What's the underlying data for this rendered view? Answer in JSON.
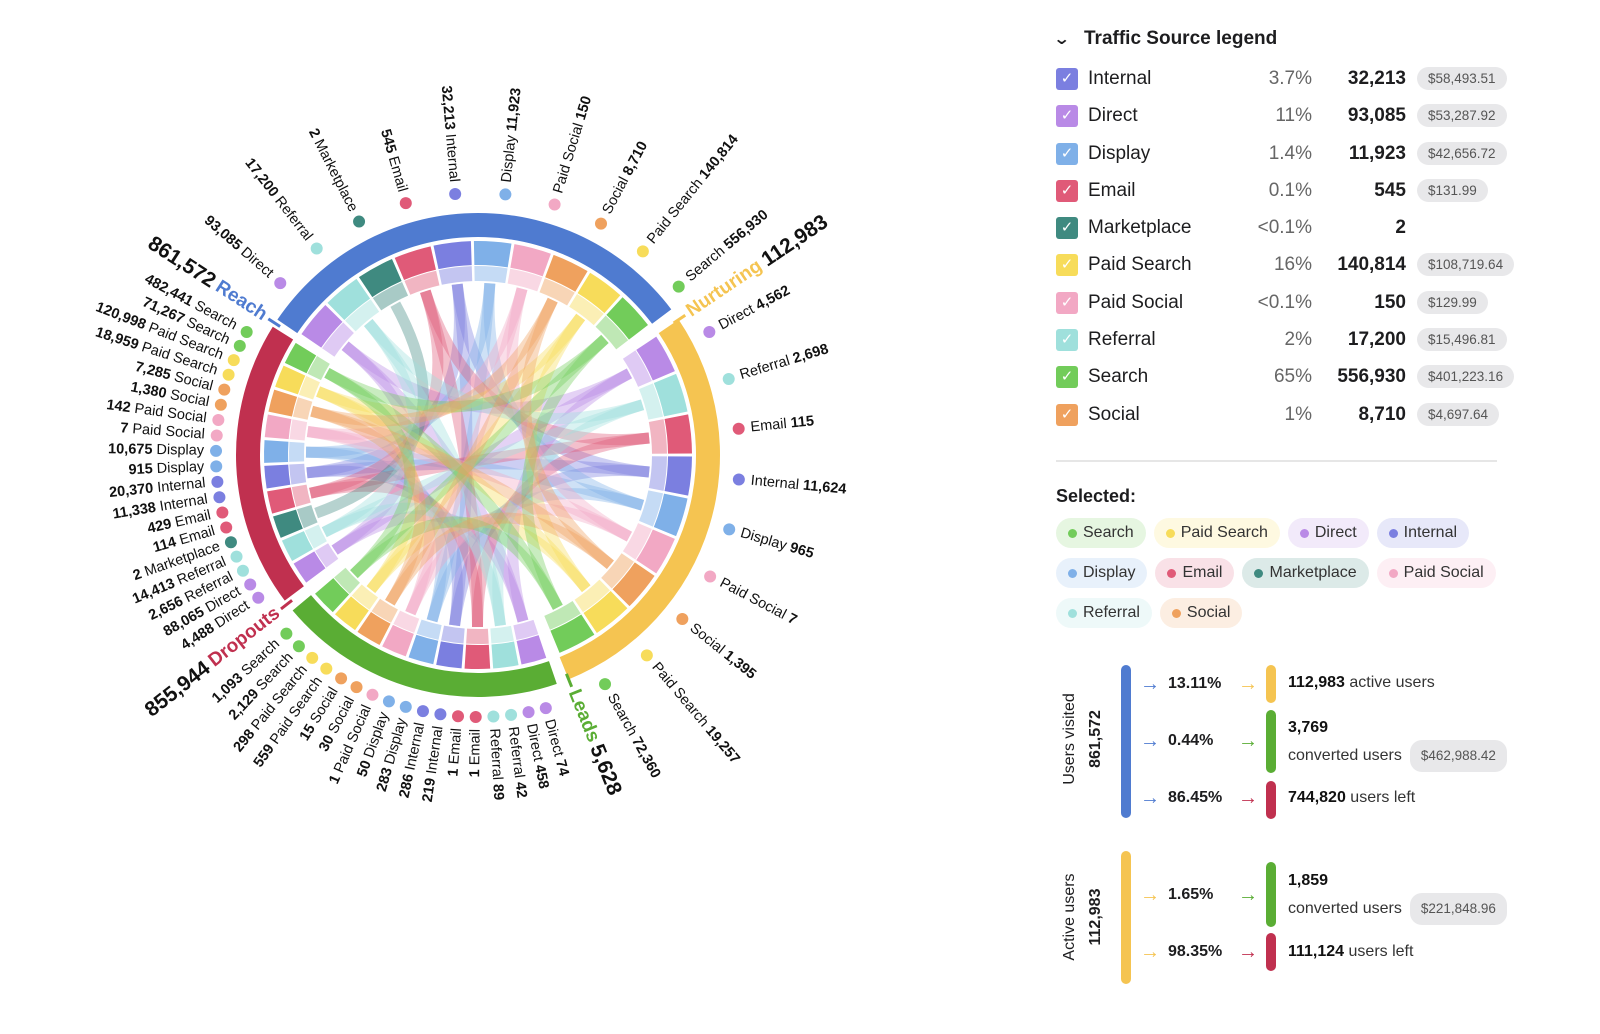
{
  "legend": {
    "title": "Traffic Source legend",
    "items": [
      {
        "name": "Internal",
        "pct": "3.7%",
        "count": "32,213",
        "revenue": "$58,493.51",
        "color": "#7b7fe0"
      },
      {
        "name": "Direct",
        "pct": "11%",
        "count": "93,085",
        "revenue": "$53,287.92",
        "color": "#b98ae6"
      },
      {
        "name": "Display",
        "pct": "1.4%",
        "count": "11,923",
        "revenue": "$42,656.72",
        "color": "#7fb0e8"
      },
      {
        "name": "Email",
        "pct": "0.1%",
        "count": "545",
        "revenue": "$131.99",
        "color": "#e05a78"
      },
      {
        "name": "Marketplace",
        "pct": "<0.1%",
        "count": "2",
        "color": "#3f8a80"
      },
      {
        "name": "Paid Search",
        "pct": "16%",
        "count": "140,814",
        "revenue": "$108,719.64",
        "color": "#f7dc5a"
      },
      {
        "name": "Paid Social",
        "pct": "<0.1%",
        "count": "150",
        "revenue": "$129.99",
        "color": "#f2a8c4"
      },
      {
        "name": "Referral",
        "pct": "2%",
        "count": "17,200",
        "revenue": "$15,496.81",
        "color": "#9fe0dc"
      },
      {
        "name": "Search",
        "pct": "65%",
        "count": "556,930",
        "revenue": "$401,223.16",
        "color": "#72cc5a"
      },
      {
        "name": "Social",
        "pct": "1%",
        "count": "8,710",
        "revenue": "$4,697.64",
        "color": "#efa15e"
      }
    ]
  },
  "selected": {
    "title": "Selected:",
    "chips": [
      "Search",
      "Paid Search",
      "Direct",
      "Internal",
      "Display",
      "Email",
      "Marketplace",
      "Paid Social",
      "Referral",
      "Social"
    ]
  },
  "flows": [
    {
      "label": "Users visited",
      "total": "861,572",
      "color": "#4f7bd0",
      "rows": [
        {
          "pct": "13.11%",
          "value": "112,983",
          "text": "active users",
          "color": "#f5c451"
        },
        {
          "pct": "0.44%",
          "value": "3,769",
          "text": "converted users",
          "revenue": "$462,988.42",
          "color": "#5aad34"
        },
        {
          "pct": "86.45%",
          "value": "744,820",
          "text": "users left",
          "color": "#c0304f"
        }
      ]
    },
    {
      "label": "Active users",
      "total": "112,983",
      "color": "#f5c451",
      "rows": [
        {
          "pct": "1.65%",
          "value": "1,859",
          "text": "converted users",
          "revenue": "$221,848.96",
          "color": "#5aad34"
        },
        {
          "pct": "98.35%",
          "value": "111,124",
          "text": "users left",
          "color": "#c0304f"
        }
      ]
    }
  ],
  "chart_data": {
    "type": "chord",
    "stages": [
      {
        "name": "Reach",
        "total": "861,572",
        "color": "#4f7bd0",
        "labels": [
          {
            "source": "Direct",
            "value": "93,085"
          },
          {
            "source": "Referral",
            "value": "17,200"
          },
          {
            "source": "Marketplace",
            "value": "2"
          },
          {
            "source": "Email",
            "value": "545"
          },
          {
            "source": "Internal",
            "value": "32,213"
          },
          {
            "source": "Display",
            "value": "11,923"
          },
          {
            "source": "Paid Social",
            "value": "150"
          },
          {
            "source": "Social",
            "value": "8,710"
          },
          {
            "source": "Paid Search",
            "value": "140,814"
          },
          {
            "source": "Search",
            "value": "556,930"
          }
        ]
      },
      {
        "name": "Nurturing",
        "total": "112,983",
        "color": "#f5c451",
        "labels": [
          {
            "source": "Direct",
            "value": "4,562"
          },
          {
            "source": "Referral",
            "value": "2,698"
          },
          {
            "source": "Email",
            "value": "115"
          },
          {
            "source": "Internal",
            "value": "11,624"
          },
          {
            "source": "Display",
            "value": "965"
          },
          {
            "source": "Paid Social",
            "value": "7"
          },
          {
            "source": "Social",
            "value": "1,395"
          },
          {
            "source": "Paid Search",
            "value": "19,257"
          },
          {
            "source": "Search",
            "value": "72,360"
          }
        ]
      },
      {
        "name": "Leads",
        "total": "5,628",
        "color": "#5aad34",
        "labels": [
          {
            "source": "Direct",
            "value": "74"
          },
          {
            "source": "Direct",
            "value": "458"
          },
          {
            "source": "Referral",
            "value": "42"
          },
          {
            "source": "Referral",
            "value": "89"
          },
          {
            "source": "Email",
            "value": "1"
          },
          {
            "source": "Email",
            "value": "1"
          },
          {
            "source": "Internal",
            "value": "219"
          },
          {
            "source": "Internal",
            "value": "286"
          },
          {
            "source": "Display",
            "value": "283"
          },
          {
            "source": "Display",
            "value": "50"
          },
          {
            "source": "Paid Social",
            "value": "1"
          },
          {
            "source": "Social",
            "value": "30"
          },
          {
            "source": "Social",
            "value": "15"
          },
          {
            "source": "Paid Search",
            "value": "559"
          },
          {
            "source": "Paid Search",
            "value": "298"
          },
          {
            "source": "Search",
            "value": "2,129"
          },
          {
            "source": "Search",
            "value": "1,093"
          }
        ]
      },
      {
        "name": "Dropouts",
        "total": "855,944",
        "color": "#c0304f",
        "labels": [
          {
            "source": "Direct",
            "value": "4,488"
          },
          {
            "source": "Direct",
            "value": "88,065"
          },
          {
            "source": "Referral",
            "value": "2,656"
          },
          {
            "source": "Referral",
            "value": "14,413"
          },
          {
            "source": "Marketplace",
            "value": "2"
          },
          {
            "source": "Email",
            "value": "114"
          },
          {
            "source": "Email",
            "value": "429"
          },
          {
            "source": "Internal",
            "value": "11,338"
          },
          {
            "source": "Internal",
            "value": "20,370"
          },
          {
            "source": "Display",
            "value": "915"
          },
          {
            "source": "Display",
            "value": "10,675"
          },
          {
            "source": "Paid Social",
            "value": "7"
          },
          {
            "source": "Paid Social",
            "value": "142"
          },
          {
            "source": "Social",
            "value": "1,380"
          },
          {
            "source": "Social",
            "value": "7,285"
          },
          {
            "source": "Paid Search",
            "value": "18,959"
          },
          {
            "source": "Paid Search",
            "value": "120,998"
          },
          {
            "source": "Search",
            "value": "71,267"
          },
          {
            "source": "Search",
            "value": "482,441"
          }
        ]
      }
    ]
  }
}
